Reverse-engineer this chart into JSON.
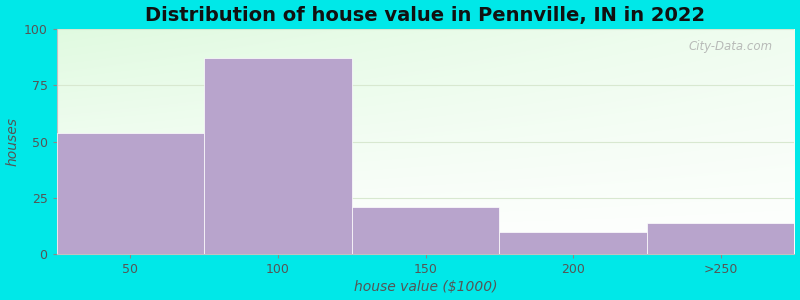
{
  "title": "Distribution of house value in Pennville, IN in 2022",
  "xlabel": "house value ($1000)",
  "ylabel": "houses",
  "bin_edges": [
    25,
    75,
    125,
    175,
    225,
    275
  ],
  "tick_positions": [
    50,
    100,
    150,
    200,
    250
  ],
  "tick_labels": [
    "50",
    "100",
    "150",
    "200",
    ">250"
  ],
  "values": [
    54,
    87,
    21,
    10,
    14
  ],
  "bar_color": "#b8a4cc",
  "bar_edge_color": "#a090be",
  "ylim": [
    0,
    100
  ],
  "yticks": [
    0,
    25,
    50,
    75,
    100
  ],
  "xlim": [
    25,
    275
  ],
  "bg_color": "#00e8e8",
  "plot_bg_color_topleft": "#e0f5e0",
  "plot_bg_color_right": "#f0f8f0",
  "plot_bg_color_bottom": "#ffffff",
  "watermark": "City-Data.com",
  "title_fontsize": 14,
  "axis_label_fontsize": 10,
  "tick_fontsize": 9,
  "grid_color": "#d8e8d0",
  "spine_color": "#c0c0c0"
}
